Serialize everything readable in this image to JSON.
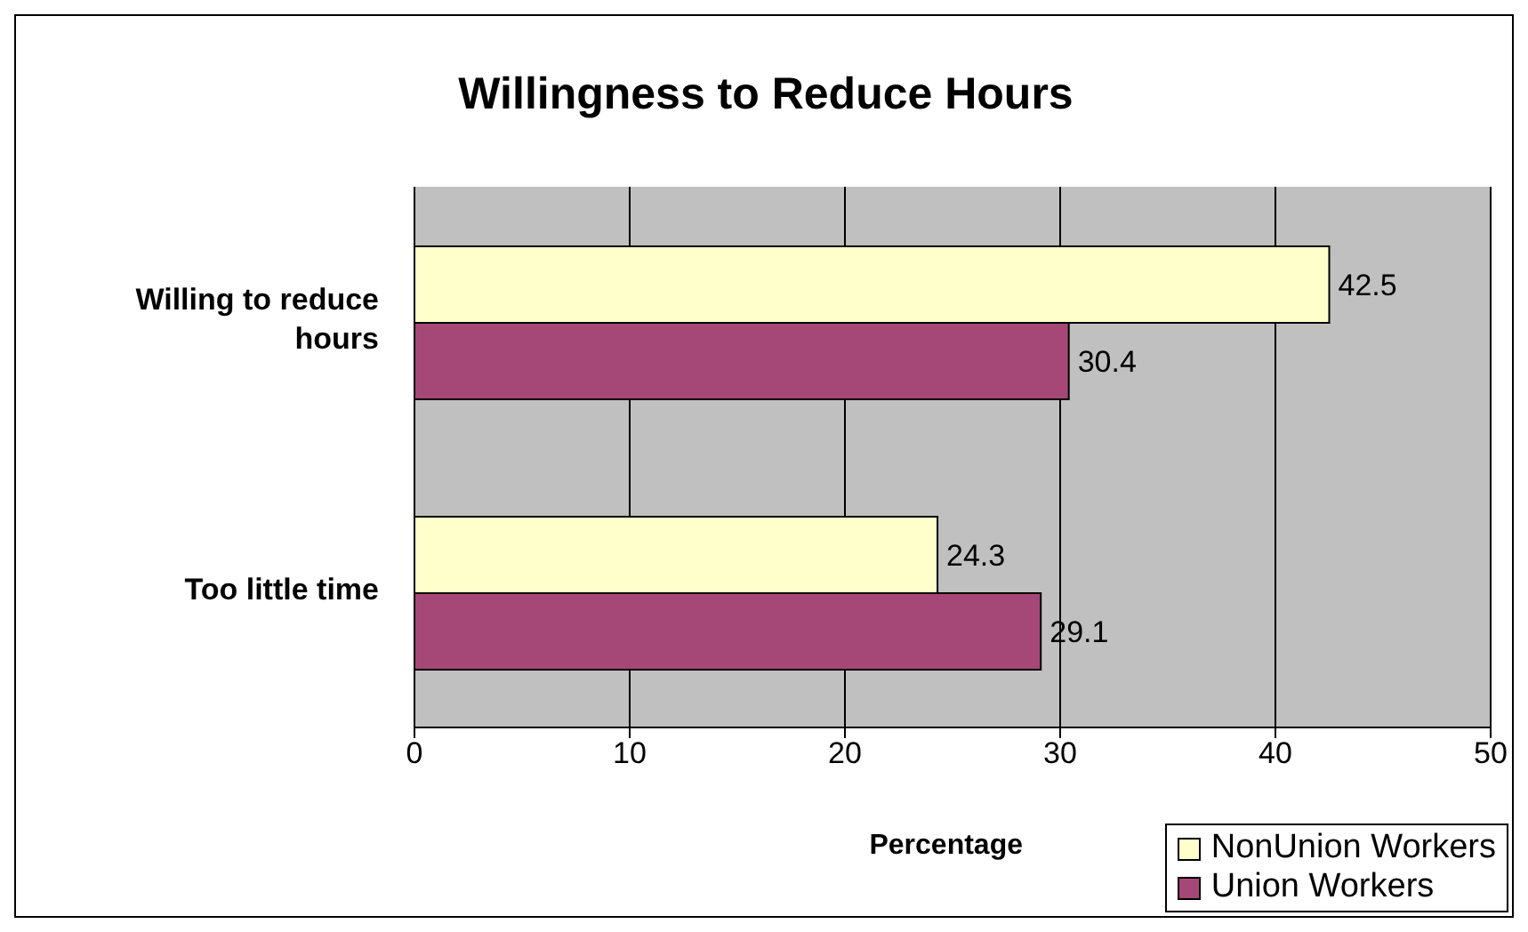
{
  "chart_data": {
    "type": "bar",
    "orientation": "horizontal",
    "title": "Willingness to Reduce Hours",
    "xlabel": "Percentage",
    "categories": [
      "Willing to reduce hours",
      "Too little time"
    ],
    "series": [
      {
        "name": "NonUnion Workers",
        "color": "#ffffcc",
        "values": [
          42.5,
          24.3
        ]
      },
      {
        "name": "Union Workers",
        "color": "#a64877",
        "values": [
          30.4,
          29.1
        ]
      }
    ],
    "xlim": [
      0,
      50
    ],
    "xticks": [
      0,
      10,
      20,
      30,
      40,
      50
    ],
    "grid": "x",
    "legend": "bottom right",
    "data_labels": true
  }
}
